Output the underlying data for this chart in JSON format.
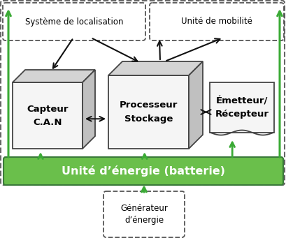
{
  "fig_width": 4.1,
  "fig_height": 3.61,
  "dpi": 100,
  "bg_color": "#ffffff",
  "green_color": "#6abf4b",
  "dark_green": "#3a7a3a",
  "arrow_green": "#3aaa35",
  "box_face": "#f5f5f5",
  "box_edge": "#444444",
  "dashed_box_color": "#555555",
  "battery_text": "Unité d’énergie (batterie)",
  "capteur_line1": "Capteur",
  "capteur_line2": "C.A.N",
  "proc_line1": "Processeur",
  "proc_line2": "Stockage",
  "emetteur_line1": "Émetteur/",
  "emetteur_line2": "Récepteur",
  "localisation_text": "Système de localisation",
  "mobilite_text": "Unité de mobilité",
  "generateur_line1": "Générateur",
  "generateur_line2": "d’énergie"
}
